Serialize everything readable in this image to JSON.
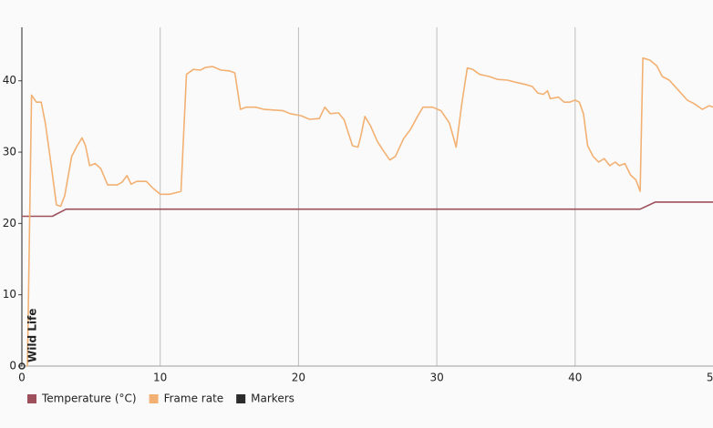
{
  "chart_data": {
    "type": "line",
    "xlim": [
      0,
      50
    ],
    "ylim": [
      0,
      47.5
    ],
    "xticks": [
      0,
      10,
      20,
      30,
      40,
      50
    ],
    "yticks": [
      0,
      10,
      20,
      30,
      40
    ],
    "grid": "x",
    "legend": "bottom-left",
    "series": [
      {
        "name": "Temperature (°C)",
        "color": "#9e4f5c",
        "x": [
          0,
          2.2,
          3.2,
          44.7,
          45.8,
          50
        ],
        "values": [
          21,
          21,
          22,
          22,
          23,
          23
        ]
      },
      {
        "name": "Frame rate",
        "color": "#f2b173",
        "x": [
          0.4,
          0.7,
          1.05,
          1.4,
          1.7,
          2.1,
          2.5,
          2.8,
          3.1,
          3.6,
          4,
          4.35,
          4.6,
          4.9,
          5.3,
          5.7,
          6.2,
          6.9,
          7.25,
          7.6,
          7.9,
          8.3,
          9,
          9.5,
          10,
          10.7,
          11.5,
          11.9,
          12.4,
          12.9,
          13.3,
          13.8,
          14.4,
          15,
          15.4,
          15.8,
          16.2,
          16.9,
          17.5,
          18.2,
          18.9,
          19.4,
          20.2,
          20.8,
          21.5,
          21.9,
          22.3,
          22.9,
          23.3,
          23.9,
          24.3,
          24.5,
          24.8,
          25.2,
          25.7,
          26.1,
          26.6,
          27,
          27.6,
          28.1,
          28.6,
          29,
          29.7,
          30.3,
          30.9,
          31.4,
          31.8,
          32.2,
          32.6,
          33.1,
          33.8,
          34.4,
          35.1,
          35.7,
          36.4,
          36.9,
          37.3,
          37.7,
          38,
          38.2,
          38.8,
          39.2,
          39.6,
          40,
          40.3,
          40.6,
          40.9,
          41.3,
          41.7,
          42.1,
          42.5,
          42.9,
          43.2,
          43.6,
          44,
          44.4,
          44.7,
          44.9,
          45.4,
          45.9,
          46.3,
          46.8,
          47.5,
          48.1,
          48.6,
          49.2,
          49.7,
          50
        ],
        "values": [
          0,
          38,
          37,
          37,
          34,
          28.4,
          22.6,
          22.4,
          23.9,
          29.4,
          30.9,
          32,
          30.9,
          28.1,
          28.4,
          27.7,
          25.4,
          25.4,
          25.8,
          26.7,
          25.5,
          25.9,
          25.9,
          24.9,
          24.1,
          24.1,
          24.5,
          40.9,
          41.6,
          41.5,
          41.9,
          42,
          41.5,
          41.4,
          41.1,
          36,
          36.3,
          36.3,
          36,
          35.9,
          35.8,
          35.4,
          35.1,
          34.6,
          34.7,
          36.3,
          35.4,
          35.5,
          34.5,
          30.9,
          30.7,
          32.2,
          35,
          33.7,
          31.5,
          30.3,
          28.9,
          29.4,
          31.9,
          33.2,
          35,
          36.3,
          36.3,
          35.8,
          34.1,
          30.7,
          36.7,
          41.8,
          41.6,
          40.9,
          40.6,
          40.2,
          40.1,
          39.8,
          39.5,
          39.2,
          38.3,
          38.1,
          38.6,
          37.5,
          37.7,
          37,
          37,
          37.3,
          37,
          35.4,
          30.9,
          29.4,
          28.6,
          29.1,
          28.1,
          28.6,
          28.1,
          28.4,
          26.8,
          26.1,
          24.5,
          43.2,
          42.9,
          42.1,
          40.6,
          40.1,
          38.6,
          37.3,
          36.8,
          36,
          36.5,
          36.3
        ]
      },
      {
        "name": "Markers",
        "color": "#2b2b2b",
        "marker_only": true,
        "x": [
          0
        ],
        "values": [
          0
        ],
        "labels": [
          "Wild Life"
        ]
      }
    ]
  }
}
